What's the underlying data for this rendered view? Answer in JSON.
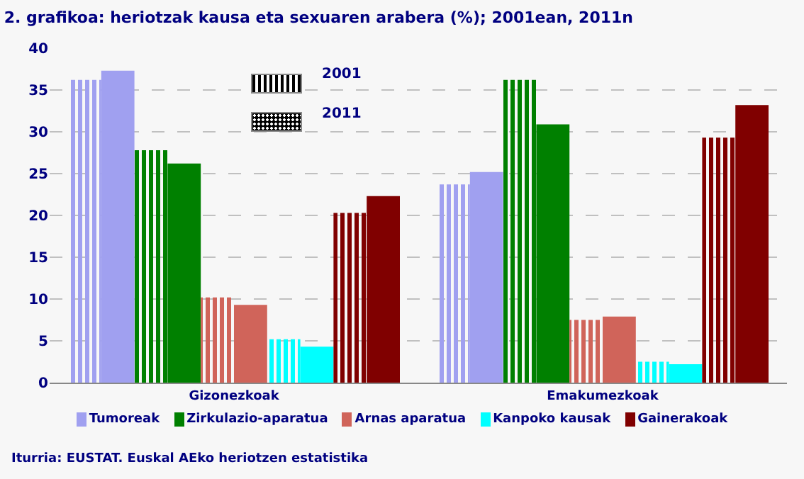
{
  "chart_data": {
    "type": "bar",
    "title": "2. grafikoa: heriotzak kausa eta sexuaren arabera (%); 2001ean, 2011n",
    "categories": [
      "Gizonezkoak",
      "Emakumezkoak"
    ],
    "series": [
      {
        "name": "Tumoreak",
        "color": "#a0a0f0",
        "values": [
          36.2,
          23.7
        ]
      },
      {
        "color": "#a0a0f0",
        "values": [
          37.3,
          25.2
        ]
      },
      {
        "name": "Zirkulazio-aparatua",
        "color": "#008000",
        "values": [
          27.8,
          36.2
        ]
      },
      {
        "color": "#008000",
        "values": [
          26.2,
          30.9
        ]
      },
      {
        "name": "Arnas aparatua",
        "color": "#d0645a",
        "values": [
          10.2,
          7.5
        ]
      },
      {
        "color": "#d0645a",
        "values": [
          9.3,
          7.9
        ]
      },
      {
        "name": "Kanpoko kausak",
        "color": "#00ffff",
        "values": [
          5.2,
          2.5
        ]
      },
      {
        "color": "#00ffff",
        "values": [
          4.3,
          2.2
        ]
      },
      {
        "name": "Gainerakoak",
        "color": "#800000",
        "values": [
          20.3,
          29.3
        ]
      },
      {
        "color": "#800000",
        "values": [
          22.3,
          33.2
        ]
      }
    ],
    "ylim": [
      0,
      40
    ],
    "yticks": [
      0,
      5,
      10,
      15,
      20,
      25,
      30,
      35,
      40
    ],
    "grid": "y",
    "legend": "bottom",
    "annotations": [
      "2001",
      "2011",
      "Iturria: EUSTAT. Euskal AEko heriotzen estatistika"
    ]
  }
}
